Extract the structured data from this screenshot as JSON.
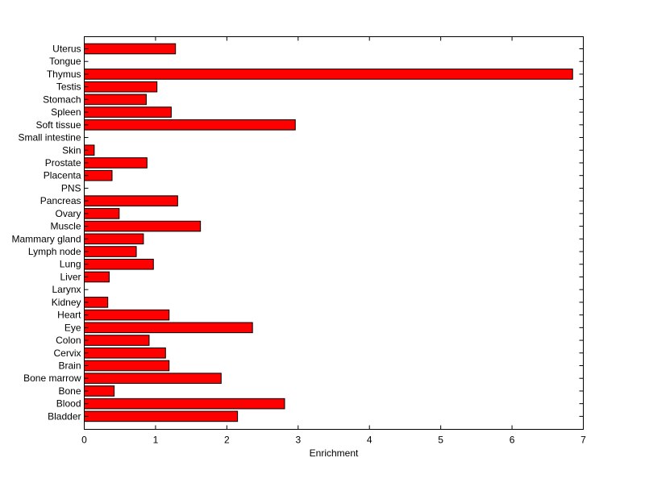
{
  "chart_data": {
    "type": "bar",
    "orientation": "horizontal",
    "categories": [
      "Bladder",
      "Blood",
      "Bone",
      "Bone marrow",
      "Brain",
      "Cervix",
      "Colon",
      "Eye",
      "Heart",
      "Kidney",
      "Larynx",
      "Liver",
      "Lung",
      "Lymph node",
      "Mammary gland",
      "Muscle",
      "Ovary",
      "Pancreas",
      "PNS",
      "Placenta",
      "Prostate",
      "Skin",
      "Small intestine",
      "Soft tissue",
      "Spleen",
      "Stomach",
      "Testis",
      "Thymus",
      "Tongue",
      "Uterus"
    ],
    "values": [
      2.15,
      2.81,
      0.42,
      1.92,
      1.19,
      1.14,
      0.91,
      2.36,
      1.19,
      0.33,
      0,
      0.35,
      0.97,
      0.73,
      0.83,
      1.63,
      0.49,
      1.31,
      0,
      0.39,
      0.88,
      0.14,
      0,
      2.96,
      1.22,
      0.87,
      1.02,
      6.85,
      0,
      1.28
    ],
    "title": "",
    "xlabel": "Enrichment",
    "ylabel": "",
    "xlim": [
      0,
      7
    ],
    "xticks": [
      "0",
      "1",
      "2",
      "3",
      "4",
      "5",
      "6",
      "7"
    ],
    "grid": false,
    "bar_color": "#ff0000",
    "bar_edge_color": "#000000"
  }
}
